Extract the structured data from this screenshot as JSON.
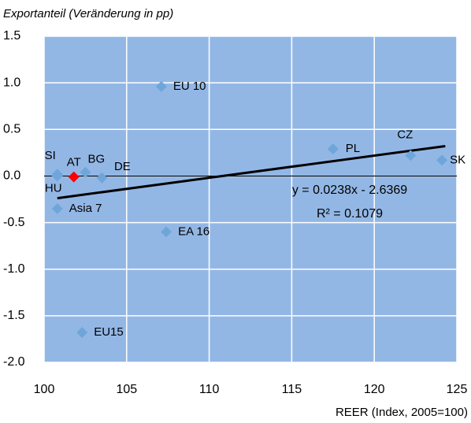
{
  "chart_data": {
    "type": "scatter",
    "y_label": "Exportanteil (Veränderung in pp)",
    "x_label": "REER (Index, 2005=100)",
    "labels": [
      "SI",
      "AT",
      "BG",
      "DE",
      "HU",
      "Asia 7",
      "EU 10",
      "EA 16",
      "EU15",
      "PL",
      "CZ",
      "SK"
    ],
    "x": [
      100.8,
      101.8,
      102.5,
      103.5,
      100.8,
      100.8,
      107.1,
      107.4,
      102.3,
      117.5,
      122.2,
      124.1
    ],
    "values": [
      0.02,
      -0.01,
      0.04,
      -0.02,
      0.0,
      -0.35,
      0.96,
      -0.6,
      -1.68,
      0.29,
      0.22,
      0.17
    ],
    "colors": [
      "#6ea6da",
      "#ff0000",
      "#6ea6da",
      "#6ea6da",
      "#6ea6da",
      "#6ea6da",
      "#6ea6da",
      "#6ea6da",
      "#6ea6da",
      "#6ea6da",
      "#6ea6da",
      "#6ea6da"
    ],
    "trendline": {
      "x": [
        100.8,
        124.3
      ],
      "values": [
        -0.238,
        0.321
      ],
      "color": "#000000",
      "equation": "y = 0.0238x - 2.6369",
      "r_squared": "R² = 0.1079"
    },
    "xlim": [
      100,
      125
    ],
    "xticks": [
      100,
      105,
      110,
      115,
      120,
      125
    ],
    "ylim": [
      -2,
      1.5
    ],
    "yticks": [
      {
        "value": -2,
        "label": "-2.0"
      },
      -1.5,
      {
        "value": -1,
        "label": "-1.0"
      },
      -0.5,
      {
        "value": 0,
        "label": "0.0"
      },
      0.5,
      {
        "value": 1,
        "label": "1.0"
      },
      1.5
    ],
    "grid": true,
    "background": "#93b7e5"
  }
}
